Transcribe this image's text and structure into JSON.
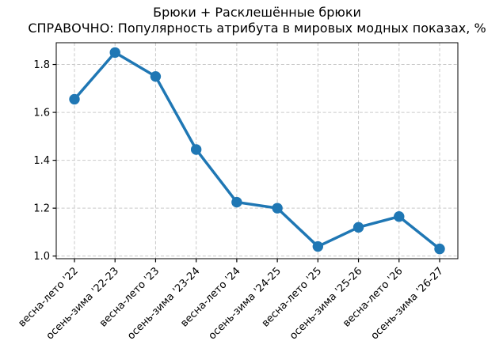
{
  "title": {
    "line1": "Брюки + Расклешённые брюки",
    "line2": "СПРАВОЧНО: Популярность атрибута в мировых модных показах, %"
  },
  "chart_data": {
    "type": "line",
    "title": "Брюки + Расклешённые брюки\nСПРАВОЧНО: Популярность атрибута в мировых модных показах, %",
    "categories": [
      "весна-лето '22",
      "осень-зима '22-23",
      "весна-лето '23",
      "осень-зима '23-24",
      "весна-лето '24",
      "осень-зима '24-25",
      "весна-лето '25",
      "осень-зима '25-26",
      "весна-лето '26",
      "осень-зима '26-27"
    ],
    "values": [
      1.655,
      1.85,
      1.75,
      1.445,
      1.225,
      1.2,
      1.04,
      1.12,
      1.165,
      1.03
    ],
    "xlabel": "",
    "ylabel": "",
    "yticks": [
      1.0,
      1.2,
      1.4,
      1.6,
      1.8
    ],
    "ylim": [
      0.989,
      1.891
    ],
    "grid": true,
    "grid_style": "dashed",
    "legend_position": "none",
    "line_color": "#1f77b4",
    "marker": "circle",
    "x_tick_rotation_deg": 45
  }
}
